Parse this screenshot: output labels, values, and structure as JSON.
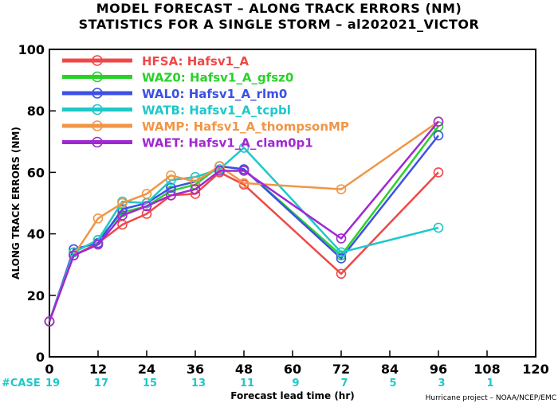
{
  "chart_data": {
    "type": "line",
    "title_line1": "MODEL FORECAST – ALONG TRACK ERRORS (NM)",
    "title_line2": "STATISTICS FOR A SINGLE STORM – al202021_VICTOR",
    "xlabel": "Forecast lead time (hr)",
    "ylabel": "ALONG TRACK ERRORS (NM)",
    "xlim": [
      0,
      120
    ],
    "ylim": [
      0,
      100
    ],
    "xticks": [
      0,
      12,
      24,
      36,
      48,
      60,
      72,
      84,
      96,
      108,
      120
    ],
    "yticks": [
      0,
      20,
      40,
      60,
      80,
      100
    ],
    "case_label": "#CASE",
    "cases": [
      {
        "x": 0,
        "n": "19"
      },
      {
        "x": 12,
        "n": "17"
      },
      {
        "x": 24,
        "n": "15"
      },
      {
        "x": 36,
        "n": "13"
      },
      {
        "x": 48,
        "n": "11"
      },
      {
        "x": 60,
        "n": "9"
      },
      {
        "x": 72,
        "n": "7"
      },
      {
        "x": 84,
        "n": "5"
      },
      {
        "x": 96,
        "n": "3"
      },
      {
        "x": 108,
        "n": "1"
      }
    ],
    "x": [
      0,
      6,
      12,
      18,
      24,
      30,
      36,
      42,
      48,
      72,
      96
    ],
    "series": [
      {
        "name": "HFSA: Hafsv1_A",
        "color": "#f04848",
        "values": [
          11.5,
          33,
          37,
          43,
          46.5,
          52.5,
          53,
          60,
          56,
          27,
          60
        ]
      },
      {
        "name": "WAZ0: Hafsv1_A_gfsz0",
        "color": "#28d228",
        "values": [
          11.5,
          34,
          38,
          47,
          49,
          54,
          56,
          62,
          61,
          33,
          75
        ]
      },
      {
        "name": "WAL0: Hafsv1_A_rlm0",
        "color": "#3c50e6",
        "values": [
          11.5,
          35,
          37,
          48,
          50,
          55,
          57,
          62,
          61,
          32,
          72
        ]
      },
      {
        "name": "WATB: Hafsv1_A_tcpbl",
        "color": "#1ec8c8",
        "values": [
          11.5,
          34,
          38,
          50.5,
          50,
          57.5,
          58.5,
          61,
          68,
          34,
          42
        ]
      },
      {
        "name": "WAMP: Hafsv1_A_thompsonMP",
        "color": "#f09646",
        "values": [
          11.5,
          33,
          45,
          50,
          53,
          59,
          57,
          62,
          56.5,
          54.5,
          76.5
        ]
      },
      {
        "name": "WAET: Hafsv1_A_clam0p1",
        "color": "#a028d2",
        "values": [
          11.5,
          33,
          36.5,
          46,
          49,
          52.5,
          54.5,
          60.5,
          60.5,
          38.5,
          76.5
        ]
      }
    ],
    "legend_position": "top-left",
    "grid": false
  },
  "credit": "Hurricane project – NOAA/NCEP/EMC"
}
